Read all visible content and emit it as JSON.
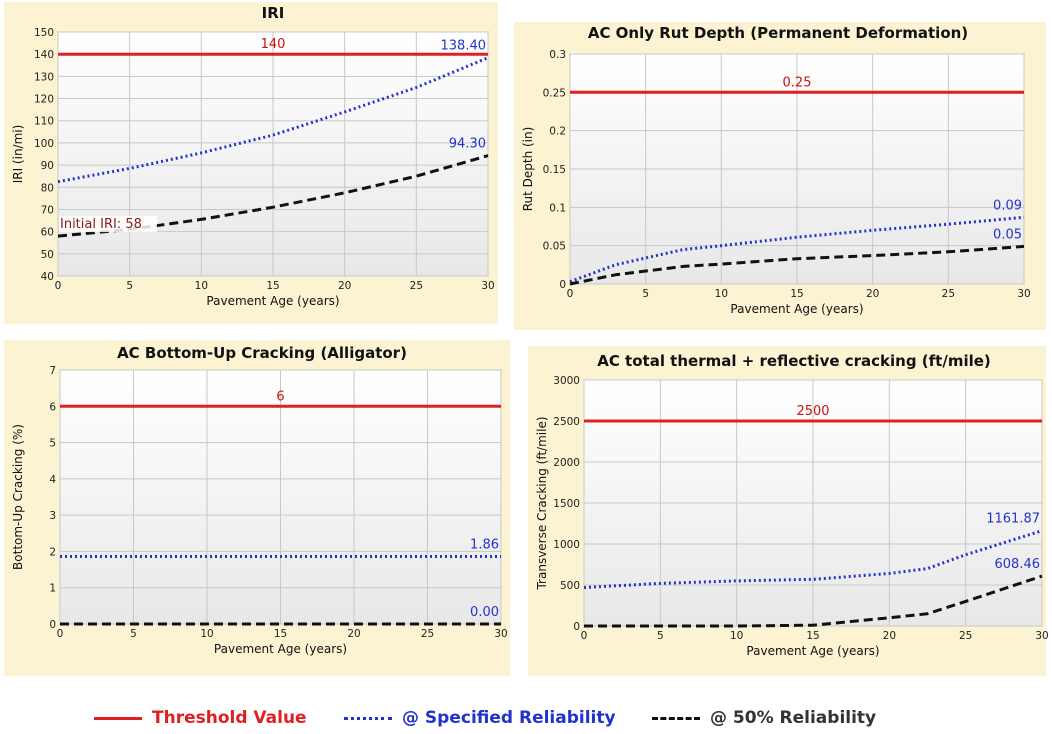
{
  "legend": {
    "threshold_label": "Threshold Value",
    "specified_label": "@ Specified Reliability",
    "fifty_label": "@ 50% Reliability"
  },
  "colors": {
    "threshold": "#e02020",
    "specified": "#2233cc",
    "fifty": "#111111",
    "panel_bg": "#fbf3d2",
    "plot_bg_top": "#ffffff",
    "plot_bg_bottom": "#e8e8e8",
    "grid": "#c8c8c8"
  },
  "chart_data": [
    {
      "type": "line",
      "title": "IRI",
      "xlabel": "Pavement Age (years)",
      "ylabel": "IRI (in/mi)",
      "xlim": [
        0,
        30
      ],
      "ylim": [
        40,
        150
      ],
      "xticks": [
        0,
        5,
        10,
        15,
        20,
        25,
        30
      ],
      "yticks": [
        40,
        50,
        60,
        70,
        80,
        90,
        100,
        110,
        120,
        130,
        140,
        150
      ],
      "grid": true,
      "series": [
        {
          "name": "Threshold Value",
          "style": "solid",
          "x": [
            0,
            30
          ],
          "y": [
            140,
            140
          ]
        },
        {
          "name": "@ Specified Reliability",
          "style": "dotted",
          "x": [
            0,
            5,
            10,
            15,
            20,
            25,
            30
          ],
          "y": [
            82.5,
            88.5,
            95.5,
            103.5,
            114,
            125,
            138.4
          ]
        },
        {
          "name": "@ 50% Reliability",
          "style": "dashed",
          "x": [
            0,
            5,
            10,
            15,
            20,
            25,
            30
          ],
          "y": [
            58,
            61,
            65.5,
            71,
            77.5,
            85,
            94.3
          ]
        }
      ],
      "annotations": [
        {
          "text": "140",
          "x": 15,
          "y": 140,
          "color": "threshold"
        },
        {
          "text": "138.40",
          "x": 30,
          "y": 138.4,
          "color": "specified"
        },
        {
          "text": "94.30",
          "x": 30,
          "y": 94.3,
          "color": "specified"
        },
        {
          "text": "Initial IRI: 58",
          "x": 0,
          "y": 58,
          "color": "initial"
        }
      ]
    },
    {
      "type": "line",
      "title": "AC Only Rut Depth (Permanent Deformation)",
      "xlabel": "Pavement Age (years)",
      "ylabel": "Rut Depth (in)",
      "xlim": [
        0,
        30
      ],
      "ylim": [
        0,
        0.3
      ],
      "xticks": [
        0,
        5,
        10,
        15,
        20,
        25,
        30
      ],
      "yticks": [
        0,
        0.05,
        0.1,
        0.15,
        0.2,
        0.25,
        0.3
      ],
      "grid": true,
      "series": [
        {
          "name": "Threshold Value",
          "style": "solid",
          "x": [
            0,
            30
          ],
          "y": [
            0.25,
            0.25
          ]
        },
        {
          "name": "@ Specified Reliability",
          "style": "dotted",
          "x": [
            0,
            3,
            7.5,
            10,
            15,
            20,
            25,
            30
          ],
          "y": [
            0.003,
            0.025,
            0.045,
            0.05,
            0.061,
            0.07,
            0.078,
            0.087
          ]
        },
        {
          "name": "@ 50% Reliability",
          "style": "dashed",
          "x": [
            0,
            3,
            7.5,
            10,
            15,
            20,
            25,
            30
          ],
          "y": [
            0,
            0.012,
            0.023,
            0.026,
            0.033,
            0.037,
            0.042,
            0.049
          ]
        }
      ],
      "annotations": [
        {
          "text": "0.25",
          "x": 15,
          "y": 0.25,
          "color": "threshold"
        },
        {
          "text": "0.09",
          "x": 30,
          "y": 0.087,
          "color": "specified"
        },
        {
          "text": "0.05",
          "x": 30,
          "y": 0.049,
          "color": "specified"
        }
      ]
    },
    {
      "type": "line",
      "title": "AC Bottom-Up Cracking (Alligator)",
      "xlabel": "Pavement Age (years)",
      "ylabel": "Bottom-Up Cracking (%)",
      "xlim": [
        0,
        30
      ],
      "ylim": [
        0,
        7
      ],
      "xticks": [
        0,
        5,
        10,
        15,
        20,
        25,
        30
      ],
      "yticks": [
        0,
        1,
        2,
        3,
        4,
        5,
        6,
        7
      ],
      "grid": true,
      "series": [
        {
          "name": "Threshold Value",
          "style": "solid",
          "x": [
            0,
            30
          ],
          "y": [
            6,
            6
          ]
        },
        {
          "name": "@ Specified Reliability",
          "style": "dotted",
          "x": [
            0,
            30
          ],
          "y": [
            1.86,
            1.86
          ]
        },
        {
          "name": "@ 50% Reliability",
          "style": "dashed",
          "x": [
            0,
            30
          ],
          "y": [
            0,
            0
          ]
        }
      ],
      "annotations": [
        {
          "text": "6",
          "x": 15,
          "y": 6,
          "color": "threshold"
        },
        {
          "text": "1.86",
          "x": 30,
          "y": 1.86,
          "color": "specified"
        },
        {
          "text": "0.00",
          "x": 30,
          "y": 0,
          "color": "specified"
        }
      ]
    },
    {
      "type": "line",
      "title": "AC total thermal + reflective cracking (ft/mile)",
      "xlabel": "Pavement Age (years)",
      "ylabel": "Transverse Cracking (ft/mile)",
      "xlim": [
        0,
        30
      ],
      "ylim": [
        0,
        3000
      ],
      "xticks": [
        0,
        5,
        10,
        15,
        20,
        25,
        30
      ],
      "yticks": [
        0,
        500,
        1000,
        1500,
        2000,
        2500,
        3000
      ],
      "grid": true,
      "series": [
        {
          "name": "Threshold Value",
          "style": "solid",
          "x": [
            0,
            30
          ],
          "y": [
            2500,
            2500
          ]
        },
        {
          "name": "@ Specified Reliability",
          "style": "dotted",
          "x": [
            0,
            5,
            10,
            15,
            20,
            22.5,
            25,
            30
          ],
          "y": [
            470,
            520,
            550,
            570,
            640,
            700,
            870,
            1161.87
          ]
        },
        {
          "name": "@ 50% Reliability",
          "style": "dashed",
          "x": [
            0,
            5,
            10,
            15,
            20,
            22.5,
            25,
            30
          ],
          "y": [
            0,
            0,
            0,
            10,
            100,
            150,
            300,
            608.46
          ]
        }
      ],
      "annotations": [
        {
          "text": "2500",
          "x": 15,
          "y": 2500,
          "color": "threshold"
        },
        {
          "text": "1161.87",
          "x": 30,
          "y": 1161.87,
          "color": "specified"
        },
        {
          "text": "608.46",
          "x": 30,
          "y": 608.46,
          "color": "specified"
        }
      ]
    }
  ]
}
